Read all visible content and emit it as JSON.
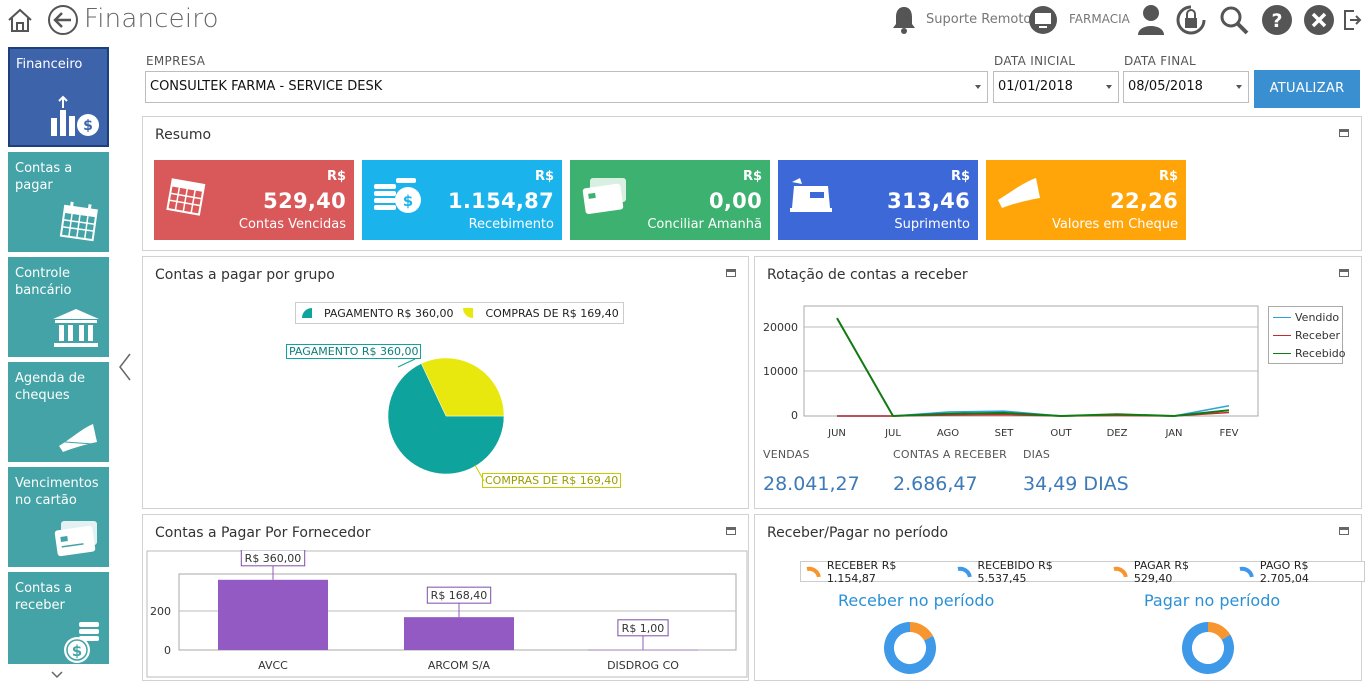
{
  "header": {
    "title": "Financeiro",
    "support_label": "Suporte Remoto",
    "store_label": "FARMACIA"
  },
  "sidebar": {
    "items": [
      {
        "label": "Financeiro",
        "icon": "chart-money-icon"
      },
      {
        "label": "Contas a pagar",
        "icon": "calendar-icon"
      },
      {
        "label": "Controle bancário",
        "icon": "bank-icon"
      },
      {
        "label": "Agenda de cheques",
        "icon": "cheque-icon"
      },
      {
        "label": "Vencimentos no cartão",
        "icon": "credit-card-icon"
      },
      {
        "label": "Contas a receber",
        "icon": "coins-icon"
      }
    ]
  },
  "filters": {
    "empresa_label": "EMPRESA",
    "empresa_value": "CONSULTEK FARMA - SERVICE DESK",
    "data_inicial_label": "DATA INICIAL",
    "data_inicial_value": "01/01/2018",
    "data_final_label": "DATA FINAL",
    "data_final_value": "08/05/2018",
    "update_label": "ATUALIZAR"
  },
  "resumo": {
    "title": "Resumo",
    "cards": [
      {
        "currency": "R$",
        "value": "529,40",
        "caption": "Contas Vencidas",
        "color": "#d9595b"
      },
      {
        "currency": "R$",
        "value": "1.154,87",
        "caption": "Recebimento",
        "color": "#1bb3ec"
      },
      {
        "currency": "R$",
        "value": "0,00",
        "caption": "Conciliar Amanhã",
        "color": "#3cb170"
      },
      {
        "currency": "R$",
        "value": "313,46",
        "caption": "Suprimento",
        "color": "#3d68d8"
      },
      {
        "currency": "R$",
        "value": "22,26",
        "caption": "Valores em Cheque",
        "color": "#ffa50a"
      }
    ]
  },
  "pie_panel": {
    "title": "Contas a pagar por grupo",
    "legend": [
      {
        "label": "PAGAMENTO  R$ 360,00",
        "color": "#0fa39e"
      },
      {
        "label": "COMPRAS DE R$ 169,40",
        "color": "#e8e80e"
      }
    ],
    "callouts": [
      "PAGAMENTO  R$ 360,00",
      "COMPRAS DE R$ 169,40"
    ]
  },
  "line_panel": {
    "title": "Rotação de contas a receber",
    "y_ticks": [
      "20000",
      "10000",
      "0"
    ],
    "x_ticks": [
      "JUN",
      "JUL",
      "AGO",
      "SET",
      "OUT",
      "DEZ",
      "JAN",
      "FEV"
    ],
    "legend": [
      {
        "label": "Vendido",
        "color": "#2f9fe0"
      },
      {
        "label": "Receber",
        "color": "#c62b2b"
      },
      {
        "label": "Recebido",
        "color": "#127a12"
      }
    ],
    "kpis": [
      {
        "label": "VENDAS",
        "value": "28.041,27"
      },
      {
        "label": "CONTAS A RECEBER",
        "value": "2.686,47"
      },
      {
        "label": "DIAS",
        "value": "34,49 DIAS"
      }
    ]
  },
  "bar_panel": {
    "title": "Contas a Pagar Por Fornecedor",
    "y_ticks": [
      "200",
      "0"
    ]
  },
  "period_panel": {
    "title": "Receber/Pagar no período",
    "legend": [
      {
        "label": "RECEBER R$ 1.154,87",
        "color": "#f7962f"
      },
      {
        "label": "RECEBIDO R$ 5.537,45",
        "color": "#3e99e8"
      },
      {
        "label": "PAGAR R$ 529,40",
        "color": "#f7962f"
      },
      {
        "label": "PAGO R$ 2.705,04",
        "color": "#3e99e8"
      }
    ],
    "receber_title": "Receber no período",
    "pagar_title": "Pagar no período"
  },
  "chart_data": [
    {
      "type": "pie",
      "title": "Contas a pagar por grupo",
      "categories": [
        "PAGAMENTO",
        "COMPRAS DE"
      ],
      "values": [
        360.0,
        169.4
      ],
      "colors": [
        "#0fa39e",
        "#e8e80e"
      ]
    },
    {
      "type": "line",
      "title": "Rotação de contas a receber",
      "categories": [
        "JUN",
        "JUL",
        "AGO",
        "SET",
        "OUT",
        "DEZ",
        "JAN",
        "FEV"
      ],
      "ylim": [
        0,
        25000
      ],
      "series": [
        {
          "name": "Vendido",
          "color": "#2f9fe0",
          "values": [
            0,
            0,
            900,
            1100,
            0,
            200,
            0,
            2300
          ]
        },
        {
          "name": "Receber",
          "color": "#c62b2b",
          "values": [
            0,
            0,
            200,
            300,
            0,
            100,
            0,
            800
          ]
        },
        {
          "name": "Recebido",
          "color": "#127a12",
          "values": [
            22000,
            0,
            500,
            700,
            0,
            400,
            0,
            1300
          ]
        }
      ],
      "legend": "right"
    },
    {
      "type": "bar",
      "title": "Contas a Pagar Por Fornecedor",
      "categories": [
        "AVCC",
        "ARCOM S/A",
        "DISDROG CO"
      ],
      "values": [
        360.0,
        168.4,
        1.0
      ],
      "labels": [
        "R$ 360,00",
        "R$ 168,40",
        "R$ 1,00"
      ],
      "ylim": [
        0,
        400
      ],
      "color": "#925ac2"
    },
    {
      "type": "pie",
      "title": "Receber no período",
      "categories": [
        "RECEBER",
        "RECEBIDO"
      ],
      "values": [
        1154.87,
        5537.45
      ],
      "colors": [
        "#f7962f",
        "#3e99e8"
      ]
    },
    {
      "type": "pie",
      "title": "Pagar no período",
      "categories": [
        "PAGAR",
        "PAGO"
      ],
      "values": [
        529.4,
        2705.04
      ],
      "colors": [
        "#f7962f",
        "#3e99e8"
      ]
    }
  ]
}
